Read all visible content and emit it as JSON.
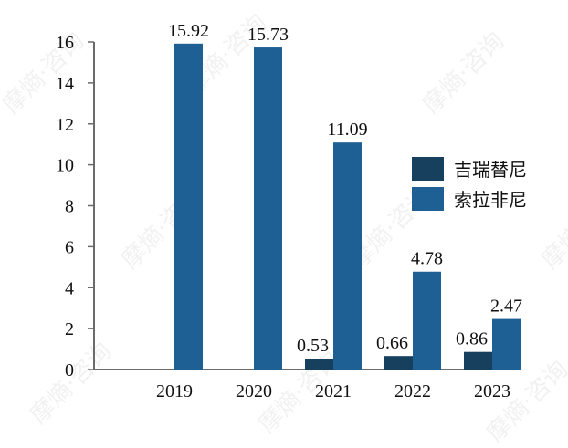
{
  "chart_data": {
    "type": "bar",
    "title": "",
    "xlabel": "",
    "ylabel": "",
    "categories": [
      "2019",
      "2020",
      "2021",
      "2022",
      "2023"
    ],
    "series": [
      {
        "name": "吉瑞替尼",
        "color": "#17405f",
        "values": [
          null,
          null,
          0.53,
          0.66,
          0.86
        ],
        "labels": [
          "",
          "",
          "0.53",
          "0.66",
          "0.86"
        ]
      },
      {
        "name": "索拉非尼",
        "color": "#1e6093",
        "values": [
          15.92,
          15.73,
          11.09,
          4.78,
          2.47
        ],
        "labels": [
          "15.92",
          "15.73",
          "11.09",
          "4.78",
          "2.47"
        ]
      }
    ],
    "ylim": [
      0,
      16
    ],
    "yticks": [
      "0",
      "2",
      "4",
      "6",
      "8",
      "10",
      "12",
      "14",
      "16"
    ],
    "grid": false,
    "legend_position": "right"
  },
  "watermark": "摩熵·咨询"
}
